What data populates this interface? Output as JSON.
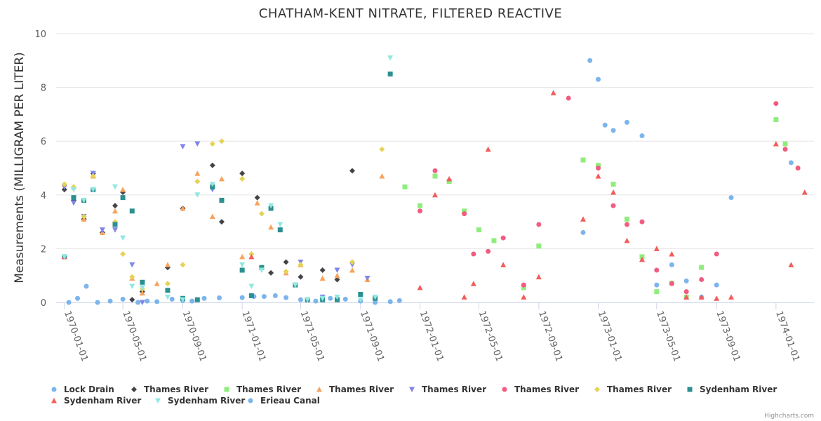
{
  "chart_data": {
    "type": "scatter",
    "title": "CHATHAM-KENT NITRATE, FILTERED REACTIVE",
    "ylabel": "Measurements (MILLIGRAM PER LITER)",
    "xlabel": "",
    "ylim": [
      0,
      10
    ],
    "xlim": [
      "1969-12-15",
      "1974-03-20"
    ],
    "y_ticks": [
      0,
      2,
      4,
      6,
      8,
      10
    ],
    "x_ticks": [
      "1970-01-01",
      "1970-05-01",
      "1970-09-01",
      "1971-01-01",
      "1971-05-01",
      "1971-09-01",
      "1972-01-01",
      "1972-05-01",
      "1972-09-01",
      "1973-01-01",
      "1973-05-01",
      "1973-09-01",
      "1974-01-01"
    ],
    "grid": "horizontal",
    "legend_position": "bottom",
    "series": [
      {
        "name": "Lock Drain",
        "color": "#7cb5ec",
        "marker": "circle",
        "points": [
          [
            "1970-01-01",
            1.7
          ],
          [
            "1970-01-10",
            0.0
          ],
          [
            "1970-01-28",
            0.15
          ],
          [
            "1970-02-15",
            0.6
          ],
          [
            "1970-03-10",
            0.0
          ],
          [
            "1970-04-05",
            0.05
          ],
          [
            "1970-05-01",
            0.12
          ],
          [
            "1970-06-01",
            0.0
          ],
          [
            "1970-06-20",
            0.05
          ],
          [
            "1970-07-10",
            0.03
          ],
          [
            "1970-08-10",
            0.12
          ],
          [
            "1970-09-01",
            0.07
          ],
          [
            "1970-09-20",
            0.05
          ],
          [
            "1970-10-15",
            0.15
          ],
          [
            "1970-11-15",
            0.17
          ],
          [
            "1971-01-01",
            0.18
          ],
          [
            "1971-01-25",
            0.22
          ],
          [
            "1971-02-15",
            0.22
          ],
          [
            "1971-03-10",
            0.25
          ],
          [
            "1971-04-01",
            0.18
          ],
          [
            "1971-05-01",
            0.1
          ],
          [
            "1971-06-01",
            0.05
          ],
          [
            "1971-07-01",
            0.15
          ],
          [
            "1971-08-01",
            0.12
          ],
          [
            "1971-09-01",
            0.05
          ],
          [
            "1971-10-01",
            0.0
          ],
          [
            "1971-11-01",
            0.03
          ],
          [
            "1971-11-20",
            0.07
          ],
          [
            "1972-12-01",
            2.6
          ],
          [
            "1972-12-15",
            9.0
          ],
          [
            "1973-01-01",
            8.3
          ],
          [
            "1973-01-15",
            6.6
          ],
          [
            "1973-02-01",
            6.4
          ],
          [
            "1973-03-01",
            6.7
          ],
          [
            "1973-04-01",
            6.2
          ],
          [
            "1973-05-01",
            0.65
          ],
          [
            "1973-06-01",
            1.4
          ],
          [
            "1973-07-01",
            0.8
          ],
          [
            "1973-08-01",
            0.2
          ],
          [
            "1973-09-01",
            0.65
          ],
          [
            "1973-10-01",
            3.9
          ],
          [
            "1974-02-01",
            5.2
          ]
        ]
      },
      {
        "name": "Thames River",
        "color": "#434348",
        "marker": "diamond",
        "points": [
          [
            "1970-01-01",
            4.2
          ],
          [
            "1970-01-20",
            3.8
          ],
          [
            "1970-02-10",
            3.1
          ],
          [
            "1970-03-01",
            4.8
          ],
          [
            "1970-03-20",
            2.6
          ],
          [
            "1970-04-15",
            3.6
          ],
          [
            "1970-05-01",
            4.1
          ],
          [
            "1970-05-20",
            0.1
          ],
          [
            "1970-06-10",
            0.4
          ],
          [
            "1970-08-01",
            1.3
          ],
          [
            "1970-09-01",
            3.5
          ],
          [
            "1970-11-01",
            5.1
          ],
          [
            "1970-11-20",
            3.0
          ],
          [
            "1971-01-01",
            4.8
          ],
          [
            "1971-02-01",
            3.9
          ],
          [
            "1971-03-01",
            1.1
          ],
          [
            "1971-04-01",
            1.5
          ],
          [
            "1971-05-01",
            0.95
          ],
          [
            "1971-06-15",
            1.2
          ],
          [
            "1971-07-15",
            0.85
          ],
          [
            "1971-08-15",
            4.9
          ]
        ]
      },
      {
        "name": "Thames River",
        "color": "#90ed7d",
        "marker": "square",
        "points": [
          [
            "1971-12-01",
            4.3
          ],
          [
            "1972-01-01",
            3.6
          ],
          [
            "1972-02-01",
            4.7
          ],
          [
            "1972-03-01",
            4.5
          ],
          [
            "1972-04-01",
            3.4
          ],
          [
            "1972-05-01",
            2.7
          ],
          [
            "1972-06-01",
            2.3
          ],
          [
            "1972-08-01",
            0.55
          ],
          [
            "1972-09-01",
            2.1
          ],
          [
            "1972-12-01",
            5.3
          ],
          [
            "1973-01-01",
            5.1
          ],
          [
            "1973-02-01",
            4.4
          ],
          [
            "1973-03-01",
            3.1
          ],
          [
            "1973-04-01",
            1.7
          ],
          [
            "1973-05-01",
            0.4
          ],
          [
            "1973-06-01",
            0.72
          ],
          [
            "1973-07-01",
            0.2
          ],
          [
            "1973-08-01",
            1.3
          ],
          [
            "1974-01-01",
            6.8
          ],
          [
            "1974-01-20",
            5.9
          ]
        ]
      },
      {
        "name": "Thames River",
        "color": "#f7a35c",
        "marker": "triangle",
        "points": [
          [
            "1970-01-01",
            4.4
          ],
          [
            "1970-01-20",
            4.3
          ],
          [
            "1970-02-10",
            3.1
          ],
          [
            "1970-03-01",
            4.7
          ],
          [
            "1970-03-20",
            2.6
          ],
          [
            "1970-04-15",
            3.4
          ],
          [
            "1970-05-01",
            4.2
          ],
          [
            "1970-05-20",
            0.9
          ],
          [
            "1970-06-10",
            0.35
          ],
          [
            "1970-07-10",
            0.7
          ],
          [
            "1970-08-01",
            1.4
          ],
          [
            "1970-09-01",
            3.5
          ],
          [
            "1970-10-01",
            4.8
          ],
          [
            "1970-11-01",
            3.2
          ],
          [
            "1970-11-20",
            4.6
          ],
          [
            "1971-01-01",
            1.7
          ],
          [
            "1971-02-01",
            3.7
          ],
          [
            "1971-03-01",
            2.8
          ],
          [
            "1971-04-01",
            1.1
          ],
          [
            "1971-05-01",
            1.4
          ],
          [
            "1971-06-15",
            0.9
          ],
          [
            "1971-07-15",
            1.0
          ],
          [
            "1971-08-15",
            1.2
          ],
          [
            "1971-09-15",
            0.85
          ],
          [
            "1971-10-15",
            4.7
          ]
        ]
      },
      {
        "name": "Thames River",
        "color": "#8085e9",
        "marker": "triangle-down",
        "points": [
          [
            "1970-01-01",
            4.3
          ],
          [
            "1970-01-20",
            3.7
          ],
          [
            "1970-02-10",
            3.2
          ],
          [
            "1970-03-01",
            4.8
          ],
          [
            "1970-03-20",
            2.7
          ],
          [
            "1970-04-15",
            2.7
          ],
          [
            "1970-05-20",
            1.4
          ],
          [
            "1970-06-10",
            0.0
          ],
          [
            "1970-09-01",
            5.8
          ],
          [
            "1970-10-01",
            5.9
          ],
          [
            "1970-11-01",
            4.2
          ],
          [
            "1971-05-01",
            1.5
          ],
          [
            "1971-06-15",
            0.2
          ],
          [
            "1971-07-15",
            1.2
          ],
          [
            "1971-08-15",
            1.4
          ],
          [
            "1971-09-15",
            0.9
          ]
        ]
      },
      {
        "name": "Thames River",
        "color": "#f15c80",
        "marker": "circle",
        "points": [
          [
            "1972-01-01",
            3.4
          ],
          [
            "1972-02-01",
            4.9
          ],
          [
            "1972-04-01",
            3.3
          ],
          [
            "1972-04-20",
            1.8
          ],
          [
            "1972-05-20",
            1.9
          ],
          [
            "1972-06-20",
            2.4
          ],
          [
            "1972-08-01",
            0.65
          ],
          [
            "1972-09-01",
            2.9
          ],
          [
            "1972-11-01",
            7.6
          ],
          [
            "1973-01-01",
            5.0
          ],
          [
            "1973-02-01",
            3.6
          ],
          [
            "1973-03-01",
            2.9
          ],
          [
            "1973-04-01",
            3.0
          ],
          [
            "1973-05-01",
            1.2
          ],
          [
            "1973-06-01",
            0.7
          ],
          [
            "1973-07-01",
            0.4
          ],
          [
            "1973-08-01",
            0.85
          ],
          [
            "1973-09-01",
            1.8
          ],
          [
            "1974-01-01",
            7.4
          ],
          [
            "1974-01-20",
            5.7
          ],
          [
            "1974-02-15",
            5.0
          ]
        ]
      },
      {
        "name": "Thames River",
        "color": "#e4d354",
        "marker": "diamond",
        "points": [
          [
            "1970-01-01",
            4.4
          ],
          [
            "1970-01-20",
            4.3
          ],
          [
            "1970-02-10",
            3.2
          ],
          [
            "1970-03-01",
            4.7
          ],
          [
            "1970-04-15",
            3.0
          ],
          [
            "1970-05-01",
            1.8
          ],
          [
            "1970-05-20",
            0.95
          ],
          [
            "1970-06-10",
            0.5
          ],
          [
            "1970-08-01",
            0.7
          ],
          [
            "1970-09-01",
            1.4
          ],
          [
            "1970-10-01",
            4.5
          ],
          [
            "1970-11-01",
            5.9
          ],
          [
            "1970-11-20",
            6.0
          ],
          [
            "1971-01-01",
            4.6
          ],
          [
            "1971-01-20",
            1.8
          ],
          [
            "1971-02-10",
            3.3
          ],
          [
            "1971-04-01",
            1.15
          ],
          [
            "1971-05-01",
            1.4
          ],
          [
            "1971-08-15",
            1.5
          ],
          [
            "1971-10-15",
            5.7
          ]
        ]
      },
      {
        "name": "Sydenham River",
        "color": "#2b908f",
        "marker": "square",
        "points": [
          [
            "1970-01-01",
            1.7
          ],
          [
            "1970-01-20",
            3.9
          ],
          [
            "1970-02-10",
            3.8
          ],
          [
            "1970-03-01",
            4.2
          ],
          [
            "1970-04-15",
            2.9
          ],
          [
            "1970-05-01",
            3.9
          ],
          [
            "1970-05-20",
            3.4
          ],
          [
            "1970-06-10",
            0.75
          ],
          [
            "1970-08-01",
            0.45
          ],
          [
            "1970-09-01",
            0.15
          ],
          [
            "1970-10-01",
            0.1
          ],
          [
            "1970-11-01",
            4.3
          ],
          [
            "1970-11-20",
            3.8
          ],
          [
            "1971-01-01",
            1.2
          ],
          [
            "1971-01-20",
            0.25
          ],
          [
            "1971-02-10",
            1.3
          ],
          [
            "1971-03-01",
            3.5
          ],
          [
            "1971-03-20",
            2.7
          ],
          [
            "1971-04-20",
            0.65
          ],
          [
            "1971-05-15",
            0.1
          ],
          [
            "1971-06-15",
            0.1
          ],
          [
            "1971-07-15",
            0.1
          ],
          [
            "1971-09-01",
            0.3
          ],
          [
            "1971-10-01",
            0.15
          ],
          [
            "1971-11-01",
            8.5
          ]
        ]
      },
      {
        "name": "Sydenham River",
        "color": "#f45b5b",
        "marker": "triangle",
        "points": [
          [
            "1970-01-01",
            1.7
          ],
          [
            "1971-01-20",
            1.7
          ],
          [
            "1972-01-01",
            0.55
          ],
          [
            "1972-02-01",
            4.0
          ],
          [
            "1972-03-01",
            4.6
          ],
          [
            "1972-04-01",
            0.2
          ],
          [
            "1972-04-20",
            0.7
          ],
          [
            "1972-05-20",
            5.7
          ],
          [
            "1972-06-20",
            1.4
          ],
          [
            "1972-08-01",
            0.2
          ],
          [
            "1972-09-01",
            0.95
          ],
          [
            "1972-10-01",
            7.8
          ],
          [
            "1972-12-01",
            3.1
          ],
          [
            "1973-01-01",
            4.7
          ],
          [
            "1973-02-01",
            4.1
          ],
          [
            "1973-03-01",
            2.3
          ],
          [
            "1973-04-01",
            1.6
          ],
          [
            "1973-05-01",
            2.0
          ],
          [
            "1973-06-01",
            1.8
          ],
          [
            "1973-07-01",
            0.2
          ],
          [
            "1973-08-01",
            0.2
          ],
          [
            "1973-09-01",
            0.15
          ],
          [
            "1973-10-01",
            0.2
          ],
          [
            "1974-01-01",
            5.9
          ],
          [
            "1974-02-01",
            1.4
          ],
          [
            "1974-03-01",
            4.1
          ]
        ]
      },
      {
        "name": "Sydenham River",
        "color": "#91e8e1",
        "marker": "triangle-down",
        "points": [
          [
            "1970-01-01",
            1.7
          ],
          [
            "1970-01-20",
            4.2
          ],
          [
            "1970-02-10",
            3.8
          ],
          [
            "1970-03-01",
            4.2
          ],
          [
            "1970-04-15",
            4.3
          ],
          [
            "1970-05-01",
            2.4
          ],
          [
            "1970-05-20",
            0.6
          ],
          [
            "1970-06-10",
            0.55
          ],
          [
            "1970-08-01",
            0.2
          ],
          [
            "1970-09-01",
            0.1
          ],
          [
            "1970-10-01",
            4.0
          ],
          [
            "1970-11-01",
            4.4
          ],
          [
            "1971-01-01",
            1.4
          ],
          [
            "1971-01-20",
            0.6
          ],
          [
            "1971-02-10",
            1.2
          ],
          [
            "1971-03-01",
            3.6
          ],
          [
            "1971-03-20",
            2.9
          ],
          [
            "1971-04-20",
            0.65
          ],
          [
            "1971-05-15",
            0.1
          ],
          [
            "1971-06-15",
            0.15
          ],
          [
            "1971-07-15",
            0.2
          ],
          [
            "1971-09-01",
            0.1
          ],
          [
            "1971-10-01",
            0.2
          ],
          [
            "1971-11-01",
            9.1
          ]
        ]
      },
      {
        "name": "Erieau Canal",
        "color": "#7cb5ec",
        "marker": "circle",
        "points": []
      }
    ]
  },
  "credits": "Highcharts.com"
}
